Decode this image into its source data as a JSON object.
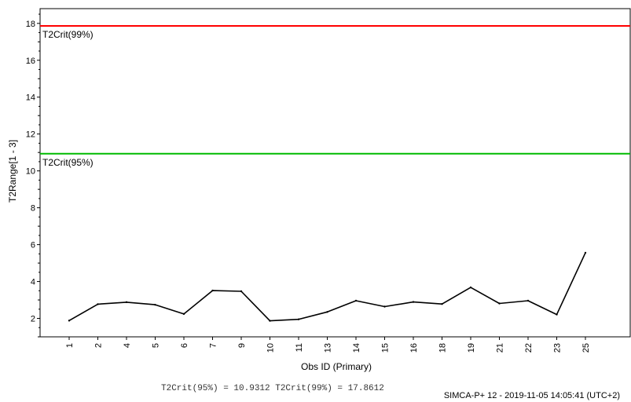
{
  "chart_data": {
    "type": "line",
    "title": "",
    "xlabel": "Obs ID (Primary)",
    "ylabel": "T2Range[1 - 3]",
    "ylim": [
      1,
      18.8
    ],
    "yticks": [
      2,
      4,
      6,
      8,
      10,
      12,
      14,
      16,
      18
    ],
    "categories": [
      "1",
      "2",
      "4",
      "5",
      "6",
      "7",
      "9",
      "10",
      "11",
      "13",
      "14",
      "15",
      "16",
      "18",
      "19",
      "21",
      "22",
      "23",
      "25"
    ],
    "series": [
      {
        "values": [
          1.88,
          2.77,
          2.88,
          2.74,
          2.24,
          3.51,
          3.47,
          1.87,
          1.95,
          2.35,
          2.96,
          2.64,
          2.89,
          2.78,
          3.68,
          2.81,
          2.96,
          2.21,
          5.56
        ]
      }
    ],
    "reference_lines": [
      {
        "label": "T2Crit(99%)",
        "value": 17.8612,
        "color": "#ff0000"
      },
      {
        "label": "T2Crit(95%)",
        "value": 10.9312,
        "color": "#00bb00"
      }
    ],
    "grid": false,
    "legend": "none"
  },
  "footer": {
    "crit_text": "T2Crit(95%) = 10.9312 T2Crit(99%) = 17.8612",
    "software": "SIMCA-P+ 12 - 2019-11-05 14:05:41 (UTC+2)"
  },
  "colors": {
    "line": "#000000",
    "crit99": "#ff0000",
    "crit95": "#00bb00"
  }
}
